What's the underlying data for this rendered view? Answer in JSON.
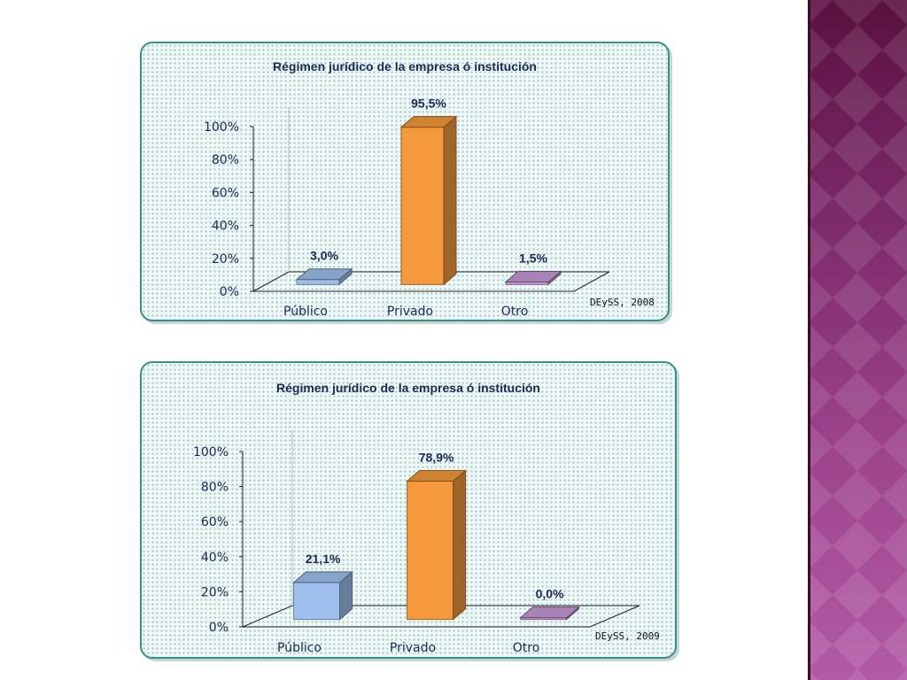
{
  "side_band": {
    "colors": [
      "#5a1040",
      "#b25aa6"
    ]
  },
  "chart_data": [
    {
      "type": "bar",
      "title": "Régimen jurídico de la empresa ó institución",
      "categories": [
        "Público",
        "Privado",
        "Otro"
      ],
      "values": [
        3.0,
        95.5,
        1.5
      ],
      "data_labels": [
        "3,0%",
        "95,5%",
        "1,5%"
      ],
      "yticks": [
        "0%",
        "20%",
        "40%",
        "60%",
        "80%",
        "100%"
      ],
      "ylim": [
        0,
        100
      ],
      "source": "DEySS, 2008",
      "grid": false,
      "bar_colors": [
        "#9fc0ee",
        "#f59a3c",
        "#c79ad8"
      ]
    },
    {
      "type": "bar",
      "title": "Régimen jurídico de la empresa ó institución",
      "categories": [
        "Público",
        "Privado",
        "Otro"
      ],
      "values": [
        21.1,
        78.9,
        0.0
      ],
      "data_labels": [
        "21,1%",
        "78,9%",
        "0,0%"
      ],
      "yticks": [
        "0%",
        "20%",
        "40%",
        "60%",
        "80%",
        "100%"
      ],
      "ylim": [
        0,
        100
      ],
      "source": "DEySS, 2009",
      "grid": false,
      "bar_colors": [
        "#9fc0ee",
        "#f59a3c",
        "#c79ad8"
      ]
    }
  ]
}
